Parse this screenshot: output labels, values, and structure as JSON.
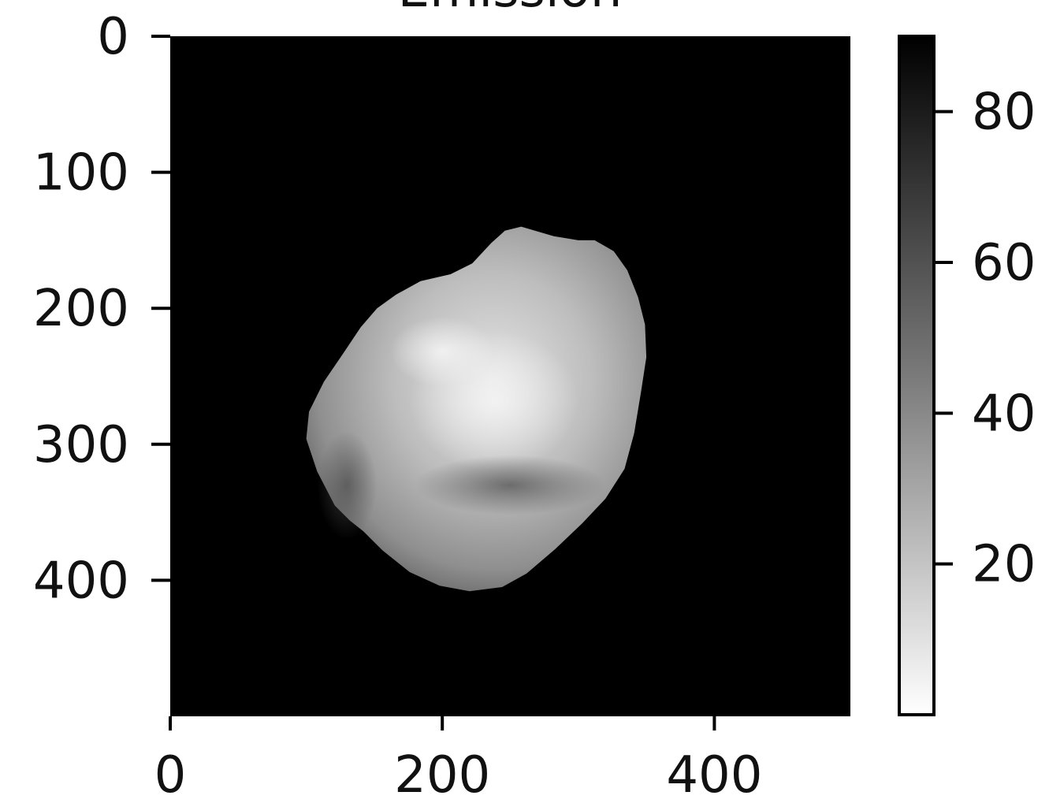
{
  "chart_data": {
    "type": "heatmap",
    "title": "Emission",
    "colormap": "gray_r",
    "image_width": 500,
    "image_height": 500,
    "x_ticks": [
      0,
      200,
      400
    ],
    "x_tick_labels": [
      "0",
      "200",
      "400"
    ],
    "y_ticks": [
      0,
      100,
      200,
      300,
      400
    ],
    "y_tick_labels": [
      "0",
      "100",
      "200",
      "300",
      "400"
    ],
    "colorbar": {
      "ticks": [
        20,
        40,
        60,
        80
      ],
      "tick_labels": [
        "20",
        "40",
        "60",
        "80"
      ],
      "range": [
        0,
        90
      ]
    },
    "background_value": 90,
    "grid": false
  }
}
